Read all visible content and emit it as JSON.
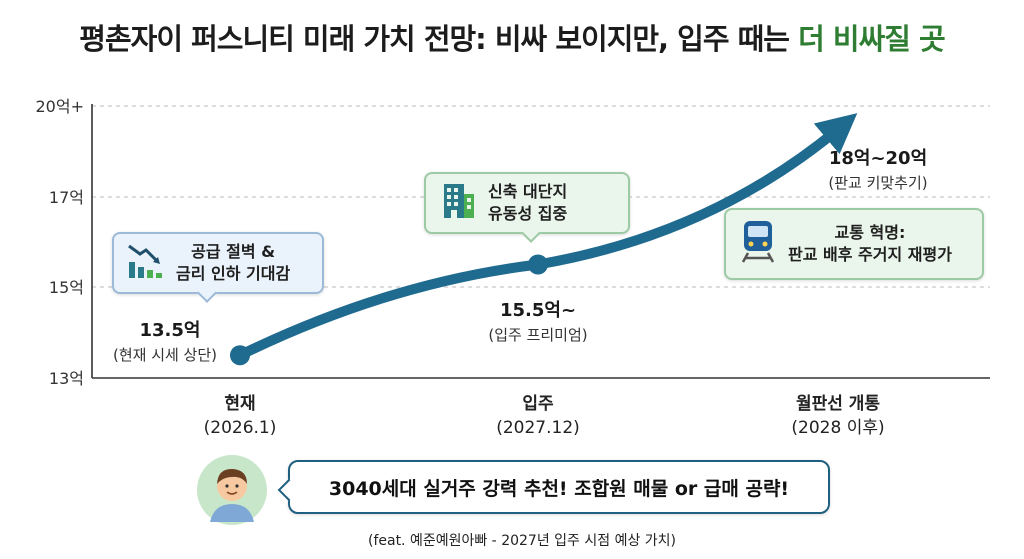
{
  "title": {
    "main": "평촌자이 퍼스니티 미래 가치 전망: 비싸 보이지만, 입주 때는",
    "highlight": "더 비싸질 곳"
  },
  "colors": {
    "line": "#1f6a8f",
    "highlight": "#2e7d32",
    "callout_green_bg": "#eaf5ec",
    "callout_blue_bg": "#eaf3fb"
  },
  "chart_data": {
    "type": "line",
    "y_ticks": [
      "13억",
      "15억",
      "17억",
      "20억+"
    ],
    "categories": [
      {
        "label": "현재",
        "sub": "(2026.1)"
      },
      {
        "label": "입주",
        "sub": "(2027.12)"
      },
      {
        "label": "월판선 개통",
        "sub": "(2028 이후)"
      }
    ],
    "points": [
      {
        "value_label": "13.5억",
        "note": "(현재 시세 상단)"
      },
      {
        "value_label": "15.5억~",
        "note": "(입주 프리미엄)"
      },
      {
        "value_label": "18억~20억",
        "note": "(판교 키맞추기)"
      }
    ],
    "values": [
      13.5,
      15.5,
      20
    ],
    "arrow_end": true
  },
  "callouts": [
    {
      "icon": "falling-chart-icon",
      "text": "공급 절벽 &\n금리 인하 기대감"
    },
    {
      "icon": "building-icon",
      "text": "신축 대단지\n유동성 집중"
    },
    {
      "icon": "train-icon",
      "text": "교통 혁명:\n판교 배후 주거지 재평가"
    }
  ],
  "speech": {
    "avatar_icon": "person-avatar-icon",
    "text": "3040세대 실거주 강력 추천! 조합원 매물 or 급매 공략!"
  },
  "footer": "(feat. 예준예원아빠 - 2027년 입주 시점 예상 가치)"
}
